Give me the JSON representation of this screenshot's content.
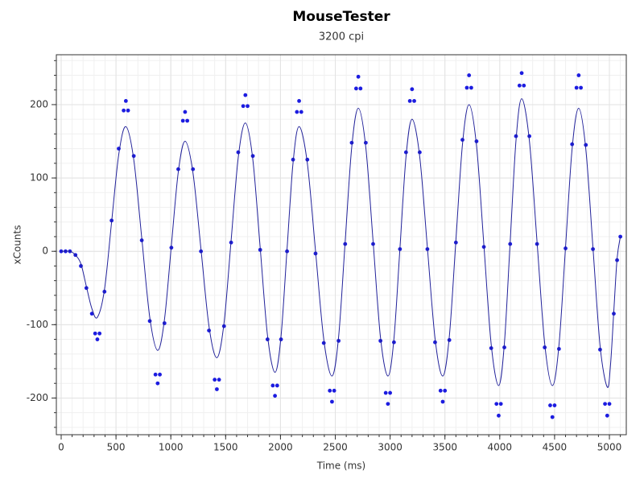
{
  "chart_data": {
    "type": "scatter",
    "title": "MouseTester",
    "subtitle": "3200 cpi",
    "x_label": "Time (ms)",
    "y_label": "xCounts",
    "xlim": [
      -44,
      5154
    ],
    "ylim": [
      -250,
      268
    ],
    "xticks": [
      0,
      500,
      1000,
      1500,
      2000,
      2500,
      3000,
      3500,
      4000,
      4500,
      5000
    ],
    "yticks": [
      -200,
      -100,
      0,
      100,
      200
    ],
    "xminor_step": 100,
    "yminor_step": 20,
    "grid": true,
    "series": [
      {
        "type": "scatter",
        "color": "#1c1ce0",
        "x": [
          0,
          40,
          80,
          130,
          180,
          230,
          280,
          310,
          330,
          350,
          395,
          460,
          525,
          570,
          590,
          610,
          662,
          735,
          808,
          860,
          880,
          900,
          942,
          1005,
          1068,
          1110,
          1130,
          1150,
          1202,
          1275,
          1348,
          1400,
          1420,
          1440,
          1485,
          1550,
          1615,
          1660,
          1680,
          1700,
          1748,
          1815,
          1882,
          1930,
          1950,
          1970,
          2005,
          2060,
          2115,
          2150,
          2170,
          2190,
          2245,
          2320,
          2395,
          2450,
          2470,
          2490,
          2530,
          2590,
          2650,
          2690,
          2710,
          2730,
          2778,
          2845,
          2912,
          2960,
          2980,
          3000,
          3035,
          3090,
          3145,
          3180,
          3200,
          3220,
          3270,
          3340,
          3410,
          3460,
          3480,
          3500,
          3540,
          3600,
          3660,
          3700,
          3720,
          3740,
          3788,
          3855,
          3922,
          3970,
          3990,
          4010,
          4042,
          4095,
          4148,
          4180,
          4200,
          4220,
          4270,
          4340,
          4410,
          4460,
          4480,
          4500,
          4540,
          4600,
          4660,
          4700,
          4720,
          4740,
          4785,
          4850,
          4915,
          4960,
          4980,
          5000,
          5040,
          5070,
          5100
        ],
        "values": [
          0,
          0,
          0,
          -5,
          -20,
          -50,
          -85,
          -112,
          -120,
          -112,
          -55,
          42,
          140,
          192,
          205,
          192,
          130,
          15,
          -95,
          -168,
          -180,
          -168,
          -98,
          5,
          112,
          178,
          190,
          178,
          112,
          0,
          -108,
          -175,
          -188,
          -175,
          -102,
          12,
          135,
          198,
          213,
          198,
          130,
          2,
          -120,
          -183,
          -197,
          -183,
          -120,
          0,
          125,
          190,
          205,
          190,
          125,
          -3,
          -125,
          -190,
          -205,
          -190,
          -122,
          10,
          148,
          222,
          238,
          222,
          148,
          10,
          -122,
          -193,
          -208,
          -193,
          -124,
          3,
          135,
          205,
          221,
          205,
          135,
          3,
          -124,
          -190,
          -205,
          -190,
          -121,
          12,
          152,
          223,
          240,
          223,
          150,
          6,
          -132,
          -208,
          -224,
          -208,
          -131,
          10,
          157,
          226,
          243,
          226,
          157,
          10,
          -131,
          -210,
          -226,
          -210,
          -133,
          4,
          146,
          223,
          240,
          223,
          145,
          3,
          -134,
          -208,
          -224,
          -208,
          -85,
          -12,
          20
        ]
      },
      {
        "type": "line",
        "color": "#22229a",
        "x": [
          0,
          80,
          130,
          180,
          230,
          280,
          330,
          395,
          460,
          525,
          590,
          662,
          735,
          808,
          880,
          942,
          1005,
          1068,
          1130,
          1202,
          1275,
          1348,
          1420,
          1485,
          1550,
          1615,
          1680,
          1748,
          1815,
          1882,
          1950,
          2005,
          2060,
          2115,
          2170,
          2245,
          2320,
          2395,
          2470,
          2530,
          2590,
          2650,
          2710,
          2778,
          2845,
          2912,
          2980,
          3035,
          3090,
          3145,
          3200,
          3270,
          3340,
          3410,
          3480,
          3540,
          3600,
          3660,
          3720,
          3788,
          3855,
          3922,
          3990,
          4042,
          4095,
          4148,
          4200,
          4270,
          4340,
          4410,
          4480,
          4540,
          4600,
          4660,
          4720,
          4785,
          4850,
          4915,
          4980,
          5010,
          5040,
          5070,
          5100
        ],
        "values": [
          0,
          0,
          -5,
          -17,
          -48,
          -78,
          -90,
          -52,
          40,
          132,
          170,
          125,
          18,
          -90,
          -135,
          -93,
          8,
          108,
          150,
          107,
          3,
          -102,
          -145,
          -98,
          15,
          128,
          175,
          125,
          5,
          -115,
          -165,
          -116,
          3,
          121,
          170,
          120,
          0,
          -120,
          -170,
          -117,
          13,
          142,
          195,
          142,
          13,
          -117,
          -170,
          -119,
          5,
          129,
          180,
          129,
          5,
          -119,
          -170,
          -116,
          15,
          146,
          200,
          144,
          9,
          -127,
          -183,
          -126,
          13,
          151,
          208,
          151,
          13,
          -126,
          -183,
          -128,
          6,
          140,
          195,
          139,
          5,
          -129,
          -185,
          -155,
          -82,
          -10,
          20
        ]
      }
    ]
  }
}
